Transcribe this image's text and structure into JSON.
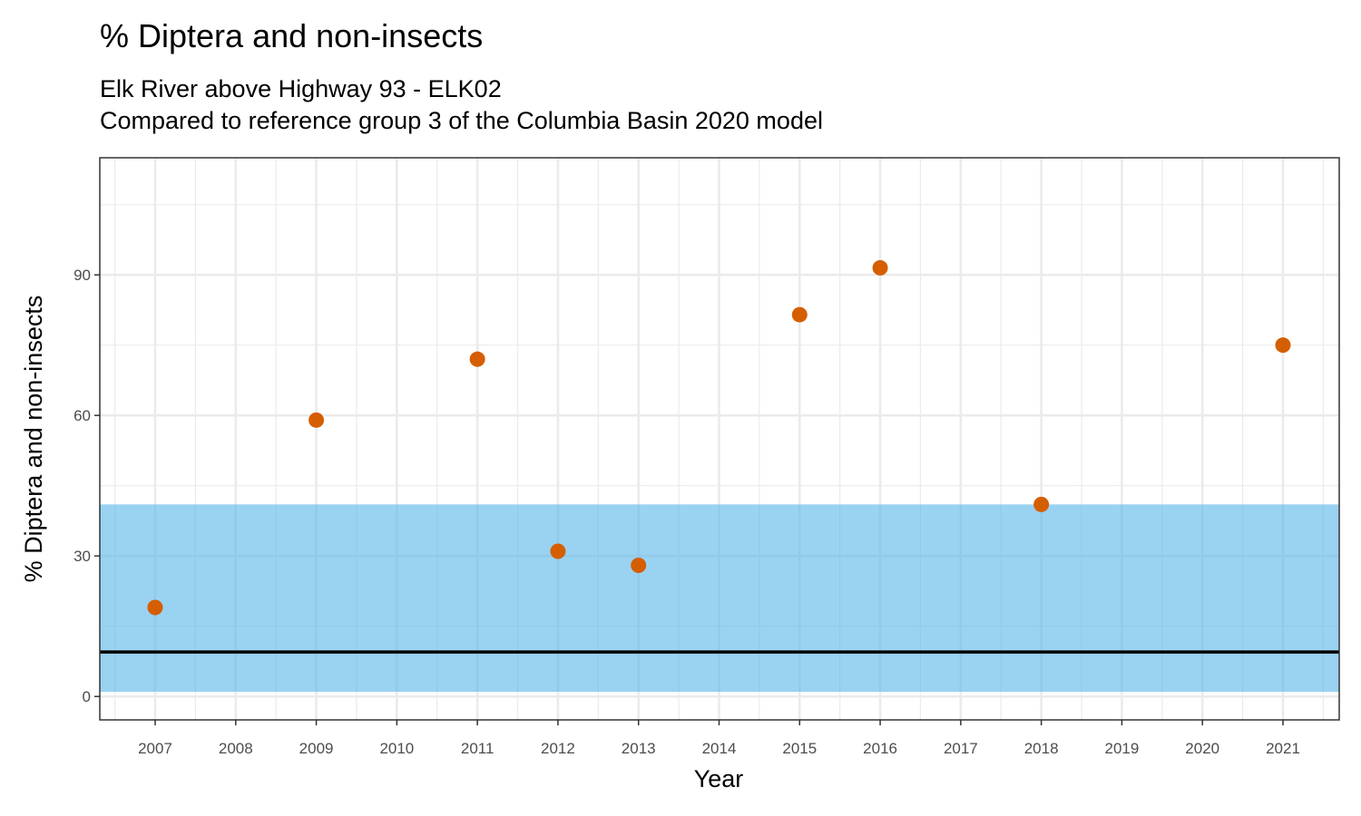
{
  "chart_data": {
    "type": "scatter",
    "title": "% Diptera and non-insects",
    "subtitle_lines": [
      "Elk River above Highway 93 - ELK02",
      "Compared to reference group 3 of the Columbia Basin 2020 model"
    ],
    "xlabel": "Year",
    "ylabel": "% Diptera and non-insects",
    "x_categories": [
      "2007",
      "2008",
      "2009",
      "2010",
      "2011",
      "2012",
      "2013",
      "2014",
      "2015",
      "2016",
      "2017",
      "2018",
      "2019",
      "2020",
      "2021"
    ],
    "y_ticks": [
      0,
      30,
      60,
      90
    ],
    "ylim": [
      -5,
      115
    ],
    "grid": true,
    "points": [
      {
        "x": "2007",
        "y": 19
      },
      {
        "x": "2009",
        "y": 59
      },
      {
        "x": "2011",
        "y": 72
      },
      {
        "x": "2012",
        "y": 31
      },
      {
        "x": "2013",
        "y": 28
      },
      {
        "x": "2015",
        "y": 81.5
      },
      {
        "x": "2016",
        "y": 91.5
      },
      {
        "x": "2018",
        "y": 41
      },
      {
        "x": "2021",
        "y": 75
      }
    ],
    "reference_band": {
      "lower": 1,
      "upper": 41
    },
    "reference_line": 9.5,
    "colors": {
      "points": "#d55e00",
      "band": "#56b4e9",
      "line": "#000000",
      "grid": "#ebebeb",
      "panel_border": "#333333"
    }
  }
}
